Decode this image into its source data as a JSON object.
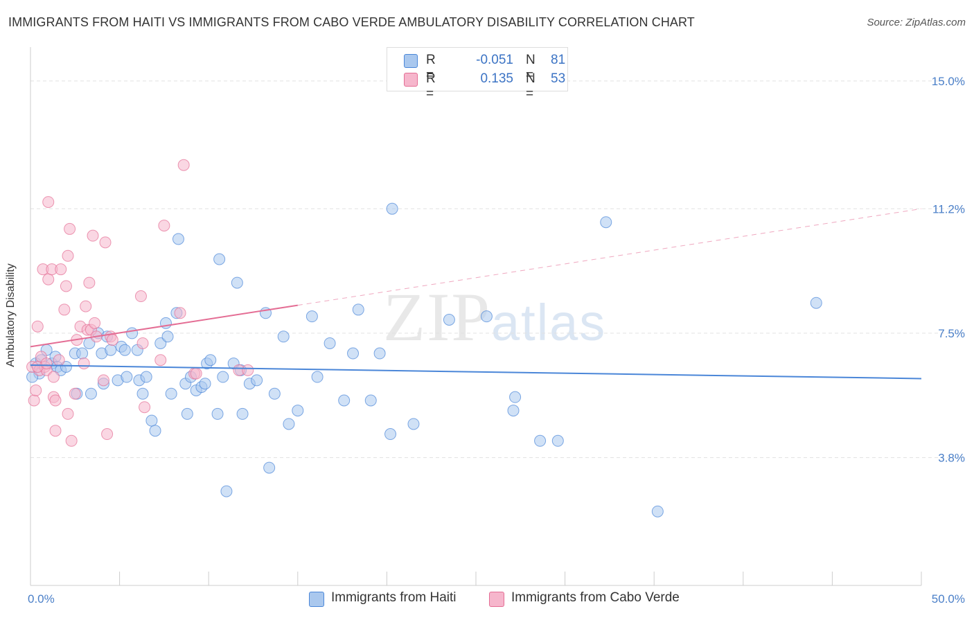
{
  "title": "IMMIGRANTS FROM HAITI VS IMMIGRANTS FROM CABO VERDE AMBULATORY DISABILITY CORRELATION CHART",
  "source": "Source: ZipAtlas.com",
  "watermark": {
    "zip": "ZIP",
    "atlas": "atlas"
  },
  "legend": {
    "r_label": "R =",
    "n_label": "N =",
    "rows": [
      {
        "r": "-0.051",
        "n": "81",
        "color": "#aac8ee"
      },
      {
        "r": "0.135",
        "n": "53",
        "color": "#f6b6cc"
      }
    ]
  },
  "bottom_legend": [
    "Immigrants from Haiti",
    "Immigrants from Cabo Verde"
  ],
  "chart_data": {
    "type": "scatter",
    "xlabel": "",
    "ylabel": "Ambulatory Disability",
    "xlim": [
      0,
      50
    ],
    "ylim": [
      0,
      15.8
    ],
    "x_tick_labels": [
      {
        "value": 0,
        "label": "0.0%"
      },
      {
        "value": 50,
        "label": "50.0%"
      }
    ],
    "y_ticks": [
      {
        "value": 3.8,
        "label": "3.8%"
      },
      {
        "value": 7.5,
        "label": "7.5%"
      },
      {
        "value": 11.2,
        "label": "11.2%"
      },
      {
        "value": 15.0,
        "label": "15.0%"
      }
    ],
    "series": [
      {
        "name": "Immigrants from Haiti",
        "color": "#4a86d8",
        "fill": "#aac8ee",
        "trend": {
          "x0": 0,
          "y0": 6.55,
          "x1": 50,
          "y1": 6.15,
          "dashed_from": null
        },
        "points": [
          [
            0.3,
            6.6
          ],
          [
            0.5,
            6.3
          ],
          [
            0.6,
            6.7
          ],
          [
            0.9,
            7.0
          ],
          [
            1.2,
            6.6
          ],
          [
            1.4,
            6.8
          ],
          [
            1.5,
            6.5
          ],
          [
            1.7,
            6.4
          ],
          [
            2.0,
            6.5
          ],
          [
            2.5,
            6.9
          ],
          [
            2.6,
            5.7
          ],
          [
            2.9,
            6.9
          ],
          [
            3.3,
            7.2
          ],
          [
            3.4,
            5.7
          ],
          [
            3.8,
            7.5
          ],
          [
            4.0,
            6.9
          ],
          [
            4.1,
            6.0
          ],
          [
            4.3,
            7.4
          ],
          [
            4.5,
            7.0
          ],
          [
            4.9,
            6.1
          ],
          [
            5.1,
            7.1
          ],
          [
            5.3,
            7.0
          ],
          [
            5.4,
            6.2
          ],
          [
            5.7,
            7.5
          ],
          [
            6.0,
            7.0
          ],
          [
            6.1,
            6.1
          ],
          [
            6.3,
            5.7
          ],
          [
            6.5,
            6.2
          ],
          [
            6.8,
            4.9
          ],
          [
            7.0,
            4.6
          ],
          [
            7.3,
            7.2
          ],
          [
            7.6,
            7.8
          ],
          [
            7.7,
            7.4
          ],
          [
            7.9,
            5.7
          ],
          [
            8.2,
            8.1
          ],
          [
            8.3,
            10.3
          ],
          [
            8.7,
            6.0
          ],
          [
            8.8,
            5.1
          ],
          [
            9.0,
            6.2
          ],
          [
            9.3,
            5.8
          ],
          [
            9.6,
            5.9
          ],
          [
            9.8,
            6.0
          ],
          [
            9.9,
            6.6
          ],
          [
            10.1,
            6.7
          ],
          [
            10.5,
            5.1
          ],
          [
            10.6,
            9.7
          ],
          [
            10.8,
            6.2
          ],
          [
            11.0,
            2.8
          ],
          [
            11.4,
            6.6
          ],
          [
            11.6,
            9.0
          ],
          [
            11.8,
            6.4
          ],
          [
            11.9,
            5.1
          ],
          [
            12.3,
            6.0
          ],
          [
            12.7,
            6.1
          ],
          [
            13.2,
            8.1
          ],
          [
            13.4,
            3.5
          ],
          [
            13.7,
            5.7
          ],
          [
            14.2,
            7.4
          ],
          [
            14.5,
            4.8
          ],
          [
            15.0,
            5.2
          ],
          [
            15.8,
            8.0
          ],
          [
            16.1,
            6.2
          ],
          [
            16.8,
            7.2
          ],
          [
            17.6,
            5.5
          ],
          [
            18.1,
            6.9
          ],
          [
            18.4,
            8.2
          ],
          [
            19.1,
            5.5
          ],
          [
            19.6,
            6.9
          ],
          [
            20.2,
            4.5
          ],
          [
            20.3,
            11.2
          ],
          [
            21.5,
            4.8
          ],
          [
            23.5,
            7.9
          ],
          [
            25.6,
            8.0
          ],
          [
            27.2,
            5.6
          ],
          [
            27.1,
            5.2
          ],
          [
            28.6,
            4.3
          ],
          [
            29.6,
            4.3
          ],
          [
            32.3,
            10.8
          ],
          [
            35.2,
            2.2
          ],
          [
            44.1,
            8.4
          ],
          [
            0.1,
            6.2
          ]
        ]
      },
      {
        "name": "Immigrants from Cabo Verde",
        "color": "#e46d94",
        "fill": "#f6b6cc",
        "trend": {
          "x0": 0,
          "y0": 7.1,
          "x1": 50,
          "y1": 11.2,
          "dashed_from": 15
        },
        "points": [
          [
            0.1,
            6.5
          ],
          [
            0.2,
            5.5
          ],
          [
            0.3,
            5.8
          ],
          [
            0.4,
            7.7
          ],
          [
            0.5,
            6.4
          ],
          [
            0.6,
            6.8
          ],
          [
            0.7,
            9.4
          ],
          [
            0.8,
            6.5
          ],
          [
            0.9,
            6.4
          ],
          [
            1.0,
            9.1
          ],
          [
            1.0,
            11.4
          ],
          [
            1.2,
            9.4
          ],
          [
            1.3,
            6.2
          ],
          [
            1.3,
            5.6
          ],
          [
            1.4,
            5.5
          ],
          [
            1.4,
            4.6
          ],
          [
            1.6,
            6.7
          ],
          [
            1.7,
            9.4
          ],
          [
            1.9,
            8.2
          ],
          [
            2.0,
            8.9
          ],
          [
            2.1,
            5.1
          ],
          [
            2.1,
            9.8
          ],
          [
            2.2,
            10.6
          ],
          [
            2.3,
            4.3
          ],
          [
            2.5,
            5.7
          ],
          [
            2.6,
            7.3
          ],
          [
            2.8,
            7.7
          ],
          [
            3.0,
            6.6
          ],
          [
            3.1,
            8.3
          ],
          [
            3.2,
            7.6
          ],
          [
            3.3,
            9.0
          ],
          [
            3.4,
            7.6
          ],
          [
            3.5,
            10.4
          ],
          [
            3.6,
            7.8
          ],
          [
            3.7,
            7.4
          ],
          [
            4.1,
            6.1
          ],
          [
            4.2,
            10.2
          ],
          [
            4.3,
            4.5
          ],
          [
            4.5,
            7.4
          ],
          [
            4.6,
            7.3
          ],
          [
            6.2,
            8.6
          ],
          [
            6.3,
            7.2
          ],
          [
            6.4,
            5.3
          ],
          [
            7.3,
            6.7
          ],
          [
            7.5,
            10.7
          ],
          [
            8.4,
            8.1
          ],
          [
            8.6,
            12.5
          ],
          [
            9.2,
            6.3
          ],
          [
            9.3,
            6.3
          ],
          [
            11.7,
            6.4
          ],
          [
            12.2,
            6.4
          ],
          [
            0.4,
            6.5
          ],
          [
            0.9,
            6.6
          ]
        ]
      }
    ]
  }
}
